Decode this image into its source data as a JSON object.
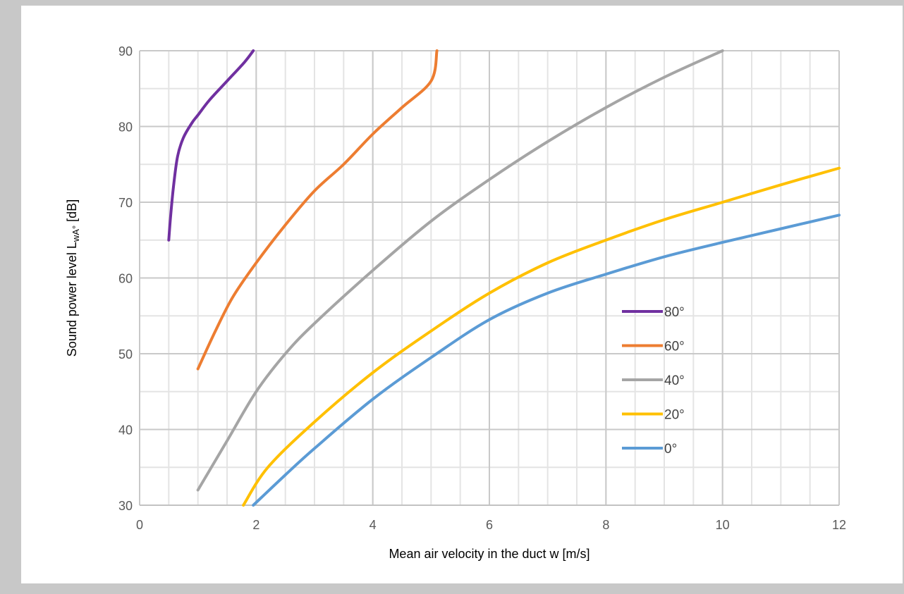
{
  "chart_data": {
    "type": "line",
    "xlabel": "Mean air velocity in the duct w [m/s]",
    "ylabel_main": "Sound power level L",
    "ylabel_sub": "wA°",
    "ylabel_unit": " [dB]",
    "xlim": [
      0,
      12
    ],
    "ylim": [
      30,
      90
    ],
    "xticks": [
      "0",
      "2",
      "4",
      "6",
      "8",
      "10",
      "12"
    ],
    "yticks": [
      "30",
      "40",
      "50",
      "60",
      "70",
      "80",
      "90"
    ],
    "minor_x_step": 0.5,
    "minor_y_step": 5,
    "grid": true,
    "legend_position": "right",
    "series": [
      {
        "name": "80°",
        "color": "#7030a0",
        "points": [
          [
            0.5,
            65
          ],
          [
            0.53,
            68
          ],
          [
            0.58,
            72
          ],
          [
            0.65,
            76
          ],
          [
            0.75,
            78.5
          ],
          [
            0.9,
            80.5
          ],
          [
            1.0,
            81.5
          ],
          [
            1.2,
            83.5
          ],
          [
            1.5,
            86
          ],
          [
            1.8,
            88.5
          ],
          [
            1.95,
            90
          ]
        ]
      },
      {
        "name": "60°",
        "color": "#ed7d31",
        "points": [
          [
            1.0,
            48
          ],
          [
            1.3,
            53
          ],
          [
            1.6,
            57.5
          ],
          [
            2.0,
            62
          ],
          [
            2.5,
            67
          ],
          [
            3.0,
            71.5
          ],
          [
            3.5,
            75
          ],
          [
            4.0,
            79
          ],
          [
            4.5,
            82.5
          ],
          [
            5.0,
            86
          ],
          [
            5.1,
            90
          ]
        ]
      },
      {
        "name": "40°",
        "color": "#a5a5a5",
        "points": [
          [
            1.0,
            32
          ],
          [
            1.5,
            38.5
          ],
          [
            2.0,
            45
          ],
          [
            2.5,
            50
          ],
          [
            3.0,
            54
          ],
          [
            4.0,
            61
          ],
          [
            5.0,
            67.5
          ],
          [
            6.0,
            73
          ],
          [
            7.0,
            78
          ],
          [
            8.0,
            82.5
          ],
          [
            9.0,
            86.5
          ],
          [
            10.0,
            90
          ]
        ]
      },
      {
        "name": "20°",
        "color": "#ffc000",
        "points": [
          [
            1.78,
            30
          ],
          [
            2.2,
            35
          ],
          [
            3.0,
            41
          ],
          [
            4.0,
            47.5
          ],
          [
            5.0,
            53
          ],
          [
            6.0,
            58
          ],
          [
            7.0,
            62
          ],
          [
            8.0,
            65
          ],
          [
            9.0,
            67.7
          ],
          [
            10.0,
            70
          ],
          [
            11.0,
            72.3
          ],
          [
            12.0,
            74.5
          ]
        ]
      },
      {
        "name": "0°",
        "color": "#5b9bd5",
        "points": [
          [
            1.95,
            30
          ],
          [
            2.5,
            34
          ],
          [
            3.0,
            37.5
          ],
          [
            4.0,
            44
          ],
          [
            5.0,
            49.5
          ],
          [
            6.0,
            54.5
          ],
          [
            7.0,
            58
          ],
          [
            8.0,
            60.5
          ],
          [
            9.0,
            62.8
          ],
          [
            10.0,
            64.7
          ],
          [
            11.0,
            66.5
          ],
          [
            12.0,
            68.3
          ]
        ]
      }
    ]
  }
}
